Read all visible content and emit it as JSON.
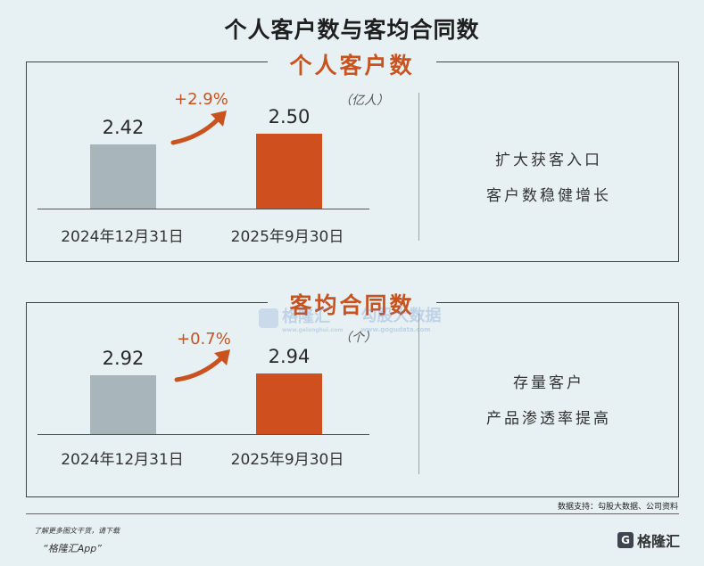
{
  "title": "个人客户数与客均合同数",
  "chart_data": [
    {
      "type": "bar",
      "title": "个人客户数",
      "unit": "（亿人）",
      "categories": [
        "2024年12月31日",
        "2025年9月30日"
      ],
      "values": [
        2.42,
        2.5
      ],
      "value_labels": [
        "2.42",
        "2.50"
      ],
      "colors": [
        "#a8b5bb",
        "#cf4f1f"
      ],
      "growth_label": "+2.9%",
      "description": [
        "扩大获客入口",
        "客户数稳健增长"
      ]
    },
    {
      "type": "bar",
      "title": "客均合同数",
      "unit": "（个）",
      "categories": [
        "2024年12月31日",
        "2025年9月30日"
      ],
      "values": [
        2.92,
        2.94
      ],
      "value_labels": [
        "2.92",
        "2.94"
      ],
      "colors": [
        "#a8b5bb",
        "#cf4f1f"
      ],
      "growth_label": "+0.7%",
      "description": [
        "存量客户",
        "产品渗透率提高"
      ]
    }
  ],
  "source": "数据支持：勾股大数据、公司资料",
  "footer": {
    "line1": "了解更多图文干货，请下载",
    "line2": "“格隆汇App”",
    "logo_text": "格隆汇",
    "logo_icon": "g-logo-icon"
  },
  "watermark": {
    "brand": "格隆汇",
    "brand_sub": "www.gelonghui.com",
    "data_brand": "勾股大数据",
    "data_sub": "www.gogudata.com"
  }
}
